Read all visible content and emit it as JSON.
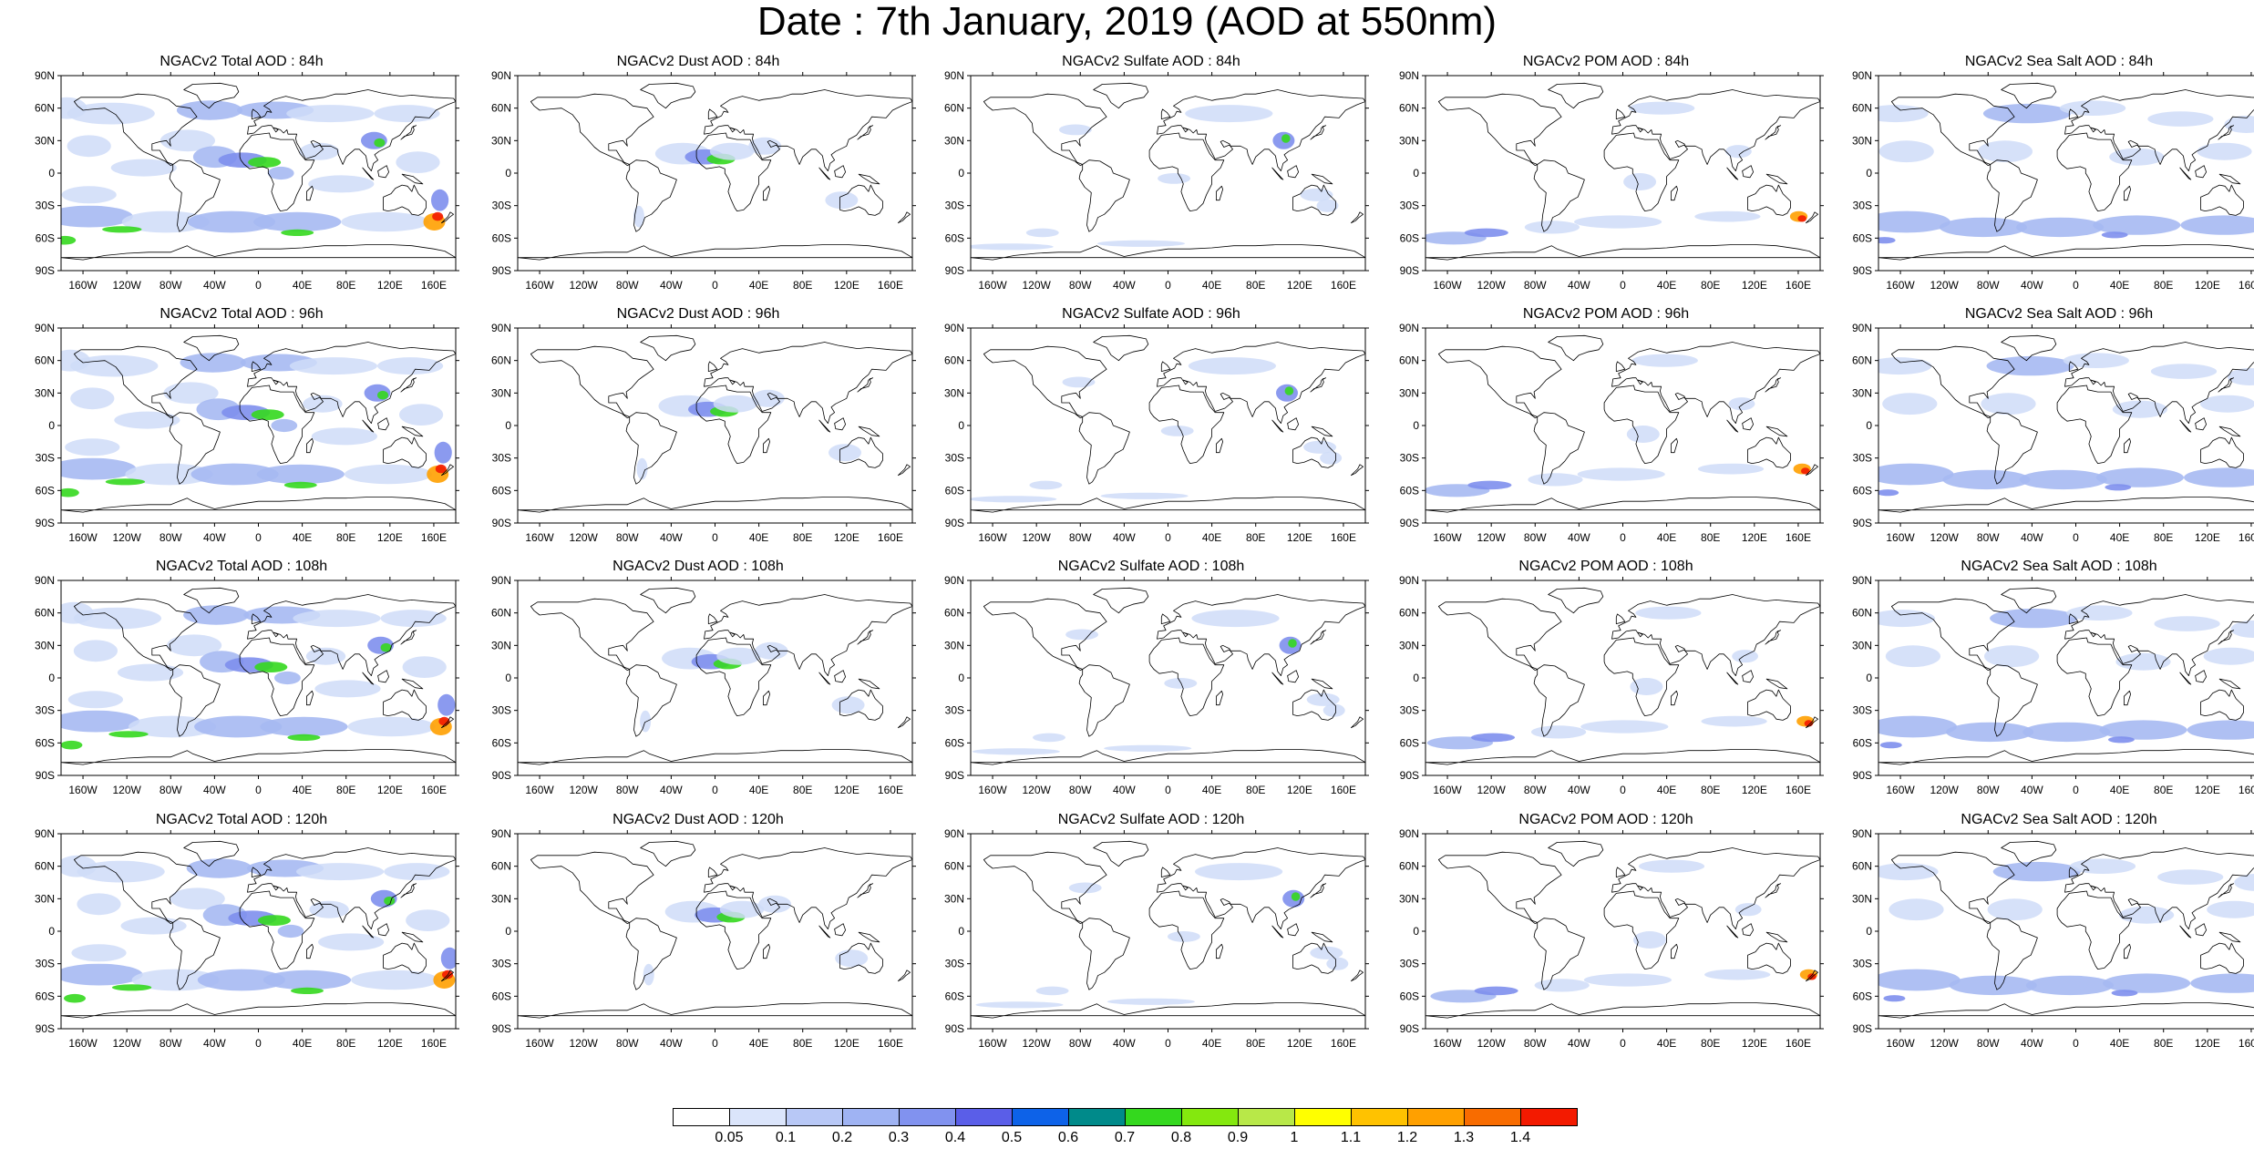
{
  "title": "Date : 7th January, 2019 (AOD at 550nm)",
  "lat_ticks": [
    "90N",
    "60N",
    "30N",
    "0",
    "30S",
    "60S",
    "90S"
  ],
  "lon_ticks": [
    "160W",
    "120W",
    "80W",
    "40W",
    "0",
    "40E",
    "80E",
    "120E",
    "160E"
  ],
  "panels": [
    [
      "NGACv2 Total AOD : 84h",
      "NGACv2 Dust AOD : 84h",
      "NGACv2 Sulfate AOD : 84h",
      "NGACv2 POM AOD : 84h",
      "NGACv2 Sea Salt AOD : 84h"
    ],
    [
      "NGACv2 Total AOD : 96h",
      "NGACv2 Dust AOD : 96h",
      "NGACv2 Sulfate AOD : 96h",
      "NGACv2 POM AOD : 96h",
      "NGACv2 Sea Salt AOD : 96h"
    ],
    [
      "NGACv2 Total AOD : 108h",
      "NGACv2 Dust AOD : 108h",
      "NGACv2 Sulfate AOD : 108h",
      "NGACv2 POM AOD : 108h",
      "NGACv2 Sea Salt AOD : 108h"
    ],
    [
      "NGACv2 Total AOD : 120h",
      "NGACv2 Dust AOD : 120h",
      "NGACv2 Sulfate AOD : 120h",
      "NGACv2 POM AOD : 120h",
      "NGACv2 Sea Salt  AOD : 120h"
    ]
  ],
  "colorbar": {
    "labels": [
      "0.05",
      "0.1",
      "0.2",
      "0.3",
      "0.4",
      "0.5",
      "0.6",
      "0.7",
      "0.8",
      "0.9",
      "1",
      "1.1",
      "1.2",
      "1.3",
      "1.4"
    ],
    "colors": [
      "#ffffff",
      "#dbe5fb",
      "#b8c8f6",
      "#9fb3f3",
      "#8192ef",
      "#5a5ee8",
      "#0d62e8",
      "#008a8a",
      "#34d81e",
      "#84e80e",
      "#b8e848",
      "#ffff00",
      "#ffc200",
      "#ffa000",
      "#f86c00",
      "#f31a00"
    ]
  },
  "blob_colors": {
    "light": "#cfdcf8",
    "medium": "#a6b9f2",
    "strong": "#7e8fed",
    "green": "#34d81e",
    "yellow": "#ffff00",
    "orange": "#ffa000",
    "red": "#f31a00"
  }
}
